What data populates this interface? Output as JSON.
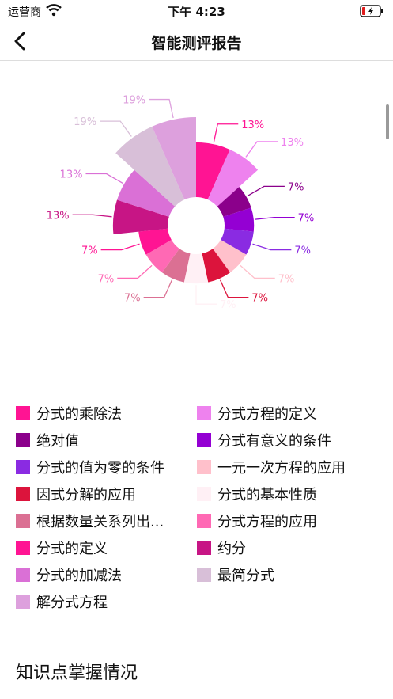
{
  "status": {
    "carrier": "运营商",
    "time": "下午 4:23"
  },
  "nav": {
    "title": "智能测评报告"
  },
  "chart_data": {
    "type": "nightingale-rose",
    "slices": [
      {
        "name": "分式的乘除法",
        "percent_label": "13%",
        "color": "#ff1493"
      },
      {
        "name": "分式方程的定义",
        "percent_label": "13%",
        "color": "#ee82ee"
      },
      {
        "name": "绝对值",
        "percent_label": "7%",
        "color": "#8b008b"
      },
      {
        "name": "分式有意义的条件",
        "percent_label": "7%",
        "color": "#9400d3"
      },
      {
        "name": "分式的值为零的条件",
        "percent_label": "7%",
        "color": "#8a2be2"
      },
      {
        "name": "一元一次方程的应用",
        "percent_label": "7%",
        "color": "#ffc0cb"
      },
      {
        "name": "因式分解的应用",
        "percent_label": "7%",
        "color": "#dc143c"
      },
      {
        "name": "分式的基本性质",
        "percent_label": "7%",
        "color": "#fff0f5"
      },
      {
        "name": "根据数量关系列出...",
        "percent_label": "7%",
        "color": "#db7093"
      },
      {
        "name": "分式方程的应用",
        "percent_label": "7%",
        "color": "#ff69b4"
      },
      {
        "name": "分式的定义",
        "percent_label": "7%",
        "color": "#ff1493"
      },
      {
        "name": "约分",
        "percent_label": "13%",
        "color": "#c71585"
      },
      {
        "name": "分式的加减法",
        "percent_label": "13%",
        "color": "#da70d6"
      },
      {
        "name": "最简分式",
        "percent_label": "19%",
        "color": "#d8bfd8"
      },
      {
        "name": "解分式方程",
        "percent_label": "19%",
        "color": "#dda0dd"
      }
    ],
    "values": [
      13,
      13,
      7,
      7,
      7,
      7,
      7,
      7,
      7,
      7,
      7,
      13,
      13,
      19,
      19
    ]
  },
  "legend": {
    "rows": [
      [
        {
          "label": "分式的乘除法",
          "color": "#ff1493"
        },
        {
          "label": "分式方程的定义",
          "color": "#ee82ee"
        }
      ],
      [
        {
          "label": "绝对值",
          "color": "#8b008b"
        },
        {
          "label": "分式有意义的条件",
          "color": "#9400d3"
        }
      ],
      [
        {
          "label": "分式的值为零的条件",
          "color": "#8a2be2"
        },
        {
          "label": "一元一次方程的应用",
          "color": "#ffc0cb"
        }
      ],
      [
        {
          "label": "因式分解的应用",
          "color": "#dc143c"
        },
        {
          "label": "分式的基本性质",
          "color": "#fff0f5"
        }
      ],
      [
        {
          "label": "根据数量关系列出...",
          "color": "#db7093"
        },
        {
          "label": "分式方程的应用",
          "color": "#ff69b4"
        }
      ],
      [
        {
          "label": "分式的定义",
          "color": "#ff1493"
        },
        {
          "label": "约分",
          "color": "#c71585"
        }
      ],
      [
        {
          "label": "分式的加减法",
          "color": "#da70d6"
        },
        {
          "label": "最简分式",
          "color": "#d8bfd8"
        }
      ],
      [
        {
          "label": "解分式方程",
          "color": "#dda0dd"
        }
      ]
    ]
  },
  "section": {
    "title": "知识点掌握情况"
  }
}
